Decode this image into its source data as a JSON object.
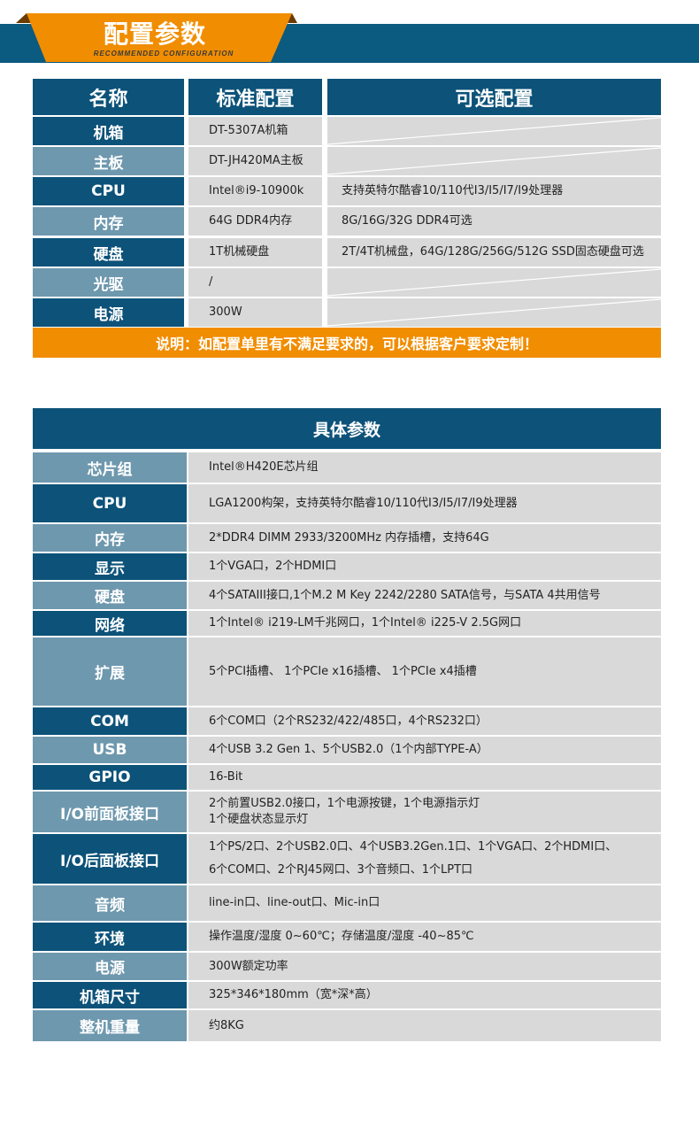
{
  "banner": {
    "title": "配置参数",
    "subtitle": "RECOMMENDED CONFIGURATION",
    "colors": {
      "band": "#0b5a80",
      "accent": "#f18d00"
    }
  },
  "config_table": {
    "headers": [
      "名称",
      "标准配置",
      "可选配置"
    ],
    "rows": [
      {
        "name": "机箱",
        "standard": "DT-5307A机箱",
        "optional": ""
      },
      {
        "name": "主板",
        "standard": "DT-JH420MA主板",
        "optional": ""
      },
      {
        "name": "CPU",
        "standard": "Intel®i9-10900k",
        "optional": "支持英特尔酷睿10/110代I3/I5/I7/I9处理器"
      },
      {
        "name": "内存",
        "standard": "64G DDR4内存",
        "optional": "8G/16G/32G DDR4可选"
      },
      {
        "name": "硬盘",
        "standard": "1T机械硬盘",
        "optional": "2T/4T机械盘，64G/128G/256G/512G SSD固态硬盘可选"
      },
      {
        "name": "光驱",
        "standard": "/",
        "optional": ""
      },
      {
        "name": "电源",
        "standard": "300W",
        "optional": ""
      }
    ],
    "note": "说明：如配置单里有不满足要求的，可以根据客户要求定制！"
  },
  "spec_table": {
    "title": "具体参数",
    "rows": [
      {
        "name": "芯片组",
        "value": "Intel®H420E芯片组"
      },
      {
        "name": "CPU",
        "value": "LGA1200构架，支持英特尔酷睿10/110代I3/I5/I7/I9处理器"
      },
      {
        "name": "内存",
        "value": "2*DDR4 DIMM 2933/3200MHz 内存插槽，支持64G"
      },
      {
        "name": "显示",
        "value": "1个VGA口，2个HDMI口"
      },
      {
        "name": "硬盘",
        "value": "4个SATAIII接口,1个M.2 M Key 2242/2280 SATA信号，与SATA 4共用信号"
      },
      {
        "name": "网络",
        "value": "1个Intel® i219-LM千兆网口，1个Intel® i225-V 2.5G网口"
      },
      {
        "name": "扩展",
        "value": "5个PCI插槽、 1个PCIe x16插槽、 1个PCIe x4插槽"
      },
      {
        "name": "COM",
        "value": "6个COM口（2个RS232/422/485口，4个RS232口）"
      },
      {
        "name": "USB",
        "value": "4个USB 3.2 Gen 1、5个USB2.0（1个内部TYPE-A）"
      },
      {
        "name": "GPIO",
        "value": "16-Bit"
      },
      {
        "name": "I/O前面板接口",
        "value": "2个前置USB2.0接口，1个电源按键，1个电源指示灯\n1个硬盘状态显示灯"
      },
      {
        "name": "I/O后面板接口",
        "value": "1个PS/2口、2个USB2.0口、4个USB3.2Gen.1口、1个VGA口、2个HDMI口、\n6个COM口、2个RJ45网口、3个音频口、1个LPT口"
      },
      {
        "name": "音频",
        "value": "line-in口、line-out口、Mic-in口"
      },
      {
        "name": "环境",
        "value": "操作温度/湿度 0~60℃；存储温度/湿度 -40~85℃"
      },
      {
        "name": "电源",
        "value": "300W额定功率"
      },
      {
        "name": "机箱尺寸",
        "value": "325*346*180mm（宽*深*高）"
      },
      {
        "name": "整机重量",
        "value": "约8KG"
      }
    ]
  }
}
